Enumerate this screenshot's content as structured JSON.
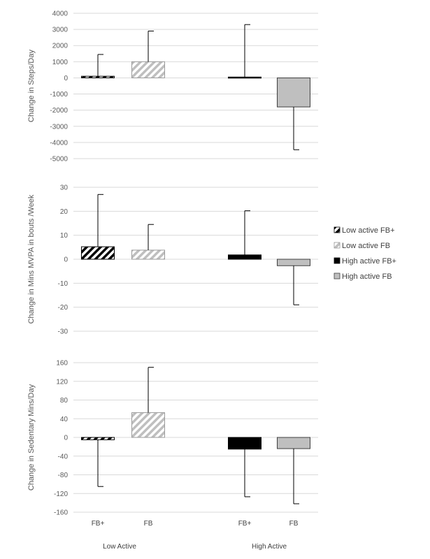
{
  "legend": {
    "entries": [
      "Low active FB+",
      "Low active FB",
      "High active FB+",
      "High active FB"
    ]
  },
  "categories": {
    "bars": [
      "FB+",
      "FB",
      "FB+",
      "FB"
    ],
    "groups": [
      "Low Active",
      "High Active"
    ]
  },
  "colors": {
    "grid": "#d9d9d9",
    "black": "#000000",
    "gray": "#bfbfbf",
    "hatchGray": "#bfbfbf",
    "text": "#595959"
  },
  "chart_data": [
    {
      "type": "bar",
      "ylabel": "Change in Steps/Day",
      "ylim": [
        -5000,
        4000
      ],
      "ticks": [
        4000,
        3000,
        2000,
        1000,
        0,
        -1000,
        -2000,
        -3000,
        -4000,
        -5000
      ],
      "series": [
        {
          "name": "Low active FB+",
          "value": 100,
          "error": 1350
        },
        {
          "name": "Low active FB",
          "value": 1000,
          "error": 1900
        },
        {
          "name": "High active FB+",
          "value": 50,
          "error": 3250
        },
        {
          "name": "High active FB",
          "value": -1800,
          "error": 2650
        }
      ]
    },
    {
      "type": "bar",
      "ylabel": "Change in Mins MVPA in  bouts /Week",
      "ylim": [
        -30,
        30
      ],
      "ticks": [
        30,
        20,
        10,
        0,
        -10,
        -20,
        -30
      ],
      "series": [
        {
          "name": "Low active FB+",
          "value": 5.2,
          "error": 21.8
        },
        {
          "name": "Low active FB",
          "value": 3.8,
          "error": 10.7
        },
        {
          "name": "High active FB+",
          "value": 1.8,
          "error": 18.4
        },
        {
          "name": "High active FB",
          "value": -2.7,
          "error": 16.3
        }
      ]
    },
    {
      "type": "bar",
      "ylabel": "Change in Sedentary Mins/Day",
      "ylim": [
        -160,
        160
      ],
      "ticks": [
        160,
        120,
        80,
        40,
        0,
        -40,
        -80,
        -120,
        -160
      ],
      "series": [
        {
          "name": "Low active FB+",
          "value": -5,
          "error": 100
        },
        {
          "name": "Low active FB",
          "value": 53,
          "error": 97
        },
        {
          "name": "High active FB+",
          "value": -25,
          "error": 102
        },
        {
          "name": "High active FB",
          "value": -24,
          "error": 118
        }
      ]
    }
  ]
}
